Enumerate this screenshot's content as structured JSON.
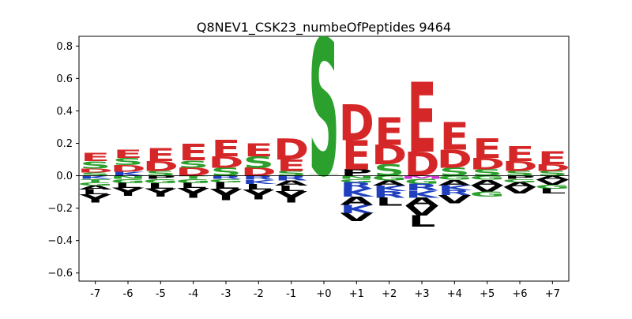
{
  "chart_data": {
    "type": "logo",
    "title": "Q8NEV1_CSK23_numbeOfPeptides 9464",
    "xlabel": "",
    "ylabel": "",
    "ylim": [
      -0.65,
      0.86
    ],
    "yticks": [
      -0.6,
      -0.4,
      -0.2,
      0.0,
      0.2,
      0.4,
      0.6,
      0.8
    ],
    "ytick_labels": [
      "−0.6",
      "−0.4",
      "−0.2",
      "0.0",
      "0.2",
      "0.4",
      "0.6",
      "0.8"
    ],
    "grid": false,
    "colors": {
      "acidic": "#d62728",
      "polar": "#2ca02c",
      "basic": "#1f3fbf",
      "hydrophobic": "#000000",
      "special": "#cc33cc",
      "text": "#000000"
    },
    "positions": [
      {
        "label": "-7",
        "pos": [
          {
            "aa": "S",
            "h": 0.02
          },
          {
            "aa": "D",
            "h": 0.025
          },
          {
            "aa": "S",
            "h": 0.045
          },
          {
            "aa": "E",
            "h": 0.05
          }
        ],
        "neg": [
          {
            "aa": "K",
            "h": 0.02
          },
          {
            "aa": "T",
            "h": 0.02
          },
          {
            "aa": "G",
            "h": 0.02
          },
          {
            "aa": "A",
            "h": 0.025
          },
          {
            "aa": "L",
            "h": 0.03
          },
          {
            "aa": "Y",
            "h": 0.05
          }
        ]
      },
      {
        "label": "-6",
        "pos": [
          {
            "aa": "K",
            "h": 0.025
          },
          {
            "aa": "D",
            "h": 0.04
          },
          {
            "aa": "S",
            "h": 0.045
          },
          {
            "aa": "E",
            "h": 0.05
          }
        ],
        "neg": [
          {
            "aa": "N",
            "h": 0.02
          },
          {
            "aa": "G",
            "h": 0.025
          },
          {
            "aa": "L",
            "h": 0.03
          },
          {
            "aa": "Y",
            "h": 0.05
          }
        ]
      },
      {
        "label": "-5",
        "pos": [
          {
            "aa": "S",
            "h": 0.03
          },
          {
            "aa": "D",
            "h": 0.06
          },
          {
            "aa": "E",
            "h": 0.08
          }
        ],
        "neg": [
          {
            "aa": "P",
            "h": 0.02
          },
          {
            "aa": "G",
            "h": 0.025
          },
          {
            "aa": "L",
            "h": 0.035
          },
          {
            "aa": "Y",
            "h": 0.05
          }
        ]
      },
      {
        "label": "-4",
        "pos": [
          {
            "aa": "D",
            "h": 0.05
          },
          {
            "aa": "S",
            "h": 0.045
          },
          {
            "aa": "E",
            "h": 0.1
          }
        ],
        "neg": [
          {
            "aa": "T",
            "h": 0.02
          },
          {
            "aa": "G",
            "h": 0.025
          },
          {
            "aa": "L",
            "h": 0.03
          },
          {
            "aa": "Y",
            "h": 0.06
          }
        ]
      },
      {
        "label": "-3",
        "pos": [
          {
            "aa": "S",
            "h": 0.05
          },
          {
            "aa": "D",
            "h": 0.07
          },
          {
            "aa": "E",
            "h": 0.1
          }
        ],
        "neg": [
          {
            "aa": "R",
            "h": 0.02
          },
          {
            "aa": "G",
            "h": 0.02
          },
          {
            "aa": "L",
            "h": 0.04
          },
          {
            "aa": "Y",
            "h": 0.07
          }
        ]
      },
      {
        "label": "-2",
        "pos": [
          {
            "aa": "D",
            "h": 0.05
          },
          {
            "aa": "S",
            "h": 0.07
          },
          {
            "aa": "E",
            "h": 0.08
          }
        ],
        "neg": [
          {
            "aa": "R",
            "h": 0.025
          },
          {
            "aa": "K",
            "h": 0.025
          },
          {
            "aa": "L",
            "h": 0.035
          },
          {
            "aa": "Y",
            "h": 0.06
          }
        ]
      },
      {
        "label": "-1",
        "pos": [
          {
            "aa": "S",
            "h": 0.03
          },
          {
            "aa": "E",
            "h": 0.07
          },
          {
            "aa": "D",
            "h": 0.13
          }
        ],
        "neg": [
          {
            "aa": "R",
            "h": 0.03
          },
          {
            "aa": "A",
            "h": 0.03
          },
          {
            "aa": "L",
            "h": 0.035
          },
          {
            "aa": "Y",
            "h": 0.07
          }
        ]
      },
      {
        "label": "+0",
        "pos": [
          {
            "aa": "T",
            "h": 0.01
          },
          {
            "aa": "S",
            "h": 0.84
          }
        ],
        "neg": []
      },
      {
        "label": "+1",
        "pos": [
          {
            "aa": "P",
            "h": 0.04
          },
          {
            "aa": "E",
            "h": 0.18
          },
          {
            "aa": "D",
            "h": 0.22
          }
        ],
        "neg": [
          {
            "aa": "N",
            "h": 0.02
          },
          {
            "aa": "G",
            "h": 0.02
          },
          {
            "aa": "R",
            "h": 0.04
          },
          {
            "aa": "K",
            "h": 0.05
          },
          {
            "aa": "A",
            "h": 0.05
          },
          {
            "aa": "K",
            "h": 0.05
          },
          {
            "aa": "V",
            "h": 0.05
          }
        ]
      },
      {
        "label": "+2",
        "pos": [
          {
            "aa": "S",
            "h": 0.07
          },
          {
            "aa": "D",
            "h": 0.12
          },
          {
            "aa": "E",
            "h": 0.17
          }
        ],
        "neg": [
          {
            "aa": "G",
            "h": 0.03
          },
          {
            "aa": "A",
            "h": 0.03
          },
          {
            "aa": "K",
            "h": 0.035
          },
          {
            "aa": "R",
            "h": 0.04
          },
          {
            "aa": "L",
            "h": 0.05
          }
        ]
      },
      {
        "label": "+3",
        "pos": [
          {
            "aa": "D",
            "h": 0.15
          },
          {
            "aa": "E",
            "h": 0.43
          }
        ],
        "neg": [
          {
            "aa": "M",
            "h": 0.02
          },
          {
            "aa": "G",
            "h": 0.03
          },
          {
            "aa": "R",
            "h": 0.04
          },
          {
            "aa": "K",
            "h": 0.045
          },
          {
            "aa": "A",
            "h": 0.05
          },
          {
            "aa": "V",
            "h": 0.06
          },
          {
            "aa": "L",
            "h": 0.07
          }
        ]
      },
      {
        "label": "+4",
        "pos": [
          {
            "aa": "S",
            "h": 0.05
          },
          {
            "aa": "D",
            "h": 0.11
          },
          {
            "aa": "E",
            "h": 0.17
          }
        ],
        "neg": [
          {
            "aa": "G",
            "h": 0.025
          },
          {
            "aa": "A",
            "h": 0.035
          },
          {
            "aa": "K",
            "h": 0.03
          },
          {
            "aa": "R",
            "h": 0.03
          },
          {
            "aa": "V",
            "h": 0.05
          }
        ]
      },
      {
        "label": "+5",
        "pos": [
          {
            "aa": "S",
            "h": 0.04
          },
          {
            "aa": "D",
            "h": 0.07
          },
          {
            "aa": "E",
            "h": 0.12
          }
        ],
        "neg": [
          {
            "aa": "G",
            "h": 0.025
          },
          {
            "aa": "A",
            "h": 0.035
          },
          {
            "aa": "V",
            "h": 0.04
          },
          {
            "aa": "G",
            "h": 0.03
          }
        ]
      },
      {
        "label": "+6",
        "pos": [
          {
            "aa": "S",
            "h": 0.03
          },
          {
            "aa": "D",
            "h": 0.06
          },
          {
            "aa": "E",
            "h": 0.09
          }
        ],
        "neg": [
          {
            "aa": "P",
            "h": 0.02
          },
          {
            "aa": "G",
            "h": 0.02
          },
          {
            "aa": "A",
            "h": 0.03
          },
          {
            "aa": "V",
            "h": 0.04
          }
        ]
      },
      {
        "label": "+7",
        "pos": [
          {
            "aa": "S",
            "h": 0.03
          },
          {
            "aa": "D",
            "h": 0.04
          },
          {
            "aa": "E",
            "h": 0.08
          }
        ],
        "neg": [
          {
            "aa": "A",
            "h": 0.025
          },
          {
            "aa": "V",
            "h": 0.03
          },
          {
            "aa": "G",
            "h": 0.025
          },
          {
            "aa": "L",
            "h": 0.03
          }
        ]
      }
    ]
  }
}
